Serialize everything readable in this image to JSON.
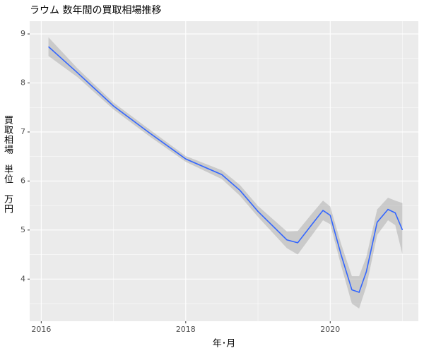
{
  "chart_data": {
    "type": "line",
    "title": "ラウム 数年間の買取相場推移",
    "x_label": "年･月",
    "y_label": "買取相場　単位　万円",
    "x": [
      2016.1,
      2016.5,
      2017.0,
      2017.5,
      2018.0,
      2018.5,
      2018.75,
      2019.0,
      2019.4,
      2019.55,
      2019.75,
      2019.9,
      2020.0,
      2020.15,
      2020.3,
      2020.4,
      2020.5,
      2020.65,
      2020.8,
      2020.9,
      2021.0
    ],
    "series": [
      {
        "color": "#3366ff",
        "band_color": "#999999",
        "values": [
          8.74,
          8.21,
          7.53,
          6.98,
          6.45,
          6.13,
          5.81,
          5.38,
          4.8,
          4.74,
          5.12,
          5.4,
          5.3,
          4.5,
          3.78,
          3.73,
          4.15,
          5.16,
          5.42,
          5.35,
          5.0
        ],
        "lower": [
          8.55,
          8.12,
          7.46,
          6.91,
          6.39,
          6.04,
          5.7,
          5.27,
          4.63,
          4.5,
          4.9,
          5.2,
          5.12,
          4.28,
          3.5,
          3.4,
          3.85,
          4.9,
          5.2,
          5.1,
          4.5
        ],
        "upper": [
          8.93,
          8.3,
          7.6,
          7.05,
          6.51,
          6.22,
          5.92,
          5.49,
          4.97,
          4.98,
          5.34,
          5.6,
          5.48,
          4.72,
          4.06,
          4.06,
          4.45,
          5.42,
          5.66,
          5.6,
          5.55
        ]
      }
    ],
    "xlim": [
      2015.84,
      2021.22
    ],
    "ylim": [
      3.14,
      9.26
    ],
    "xticks": [
      2016,
      2018,
      2020
    ],
    "yticks": [
      4,
      5,
      6,
      7,
      8,
      9
    ],
    "xminor": [
      2017,
      2019,
      2021
    ],
    "yminor": [
      3.5,
      4.5,
      5.5,
      6.5,
      7.5,
      8.5
    ],
    "grid": true
  }
}
